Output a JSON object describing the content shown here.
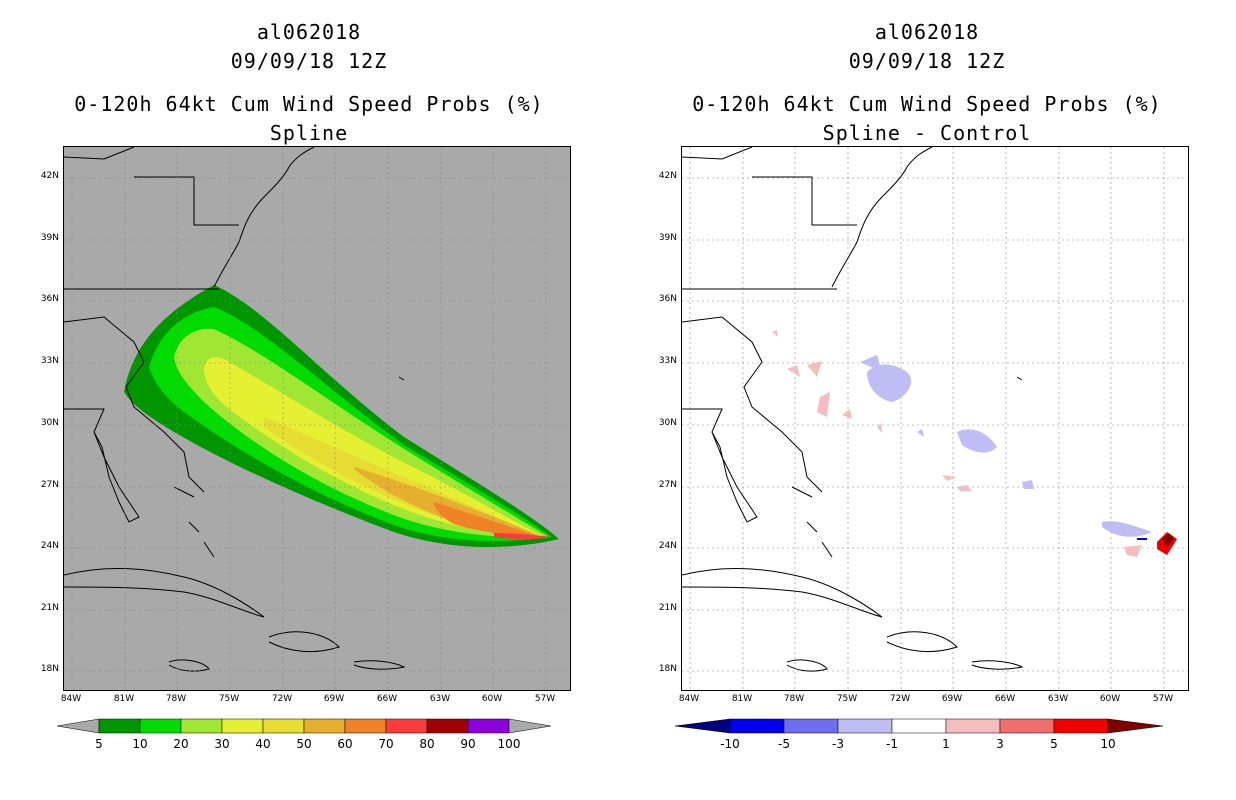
{
  "left": {
    "title_line1": "al062018",
    "title_line2": "09/09/18 12Z",
    "title_line3": "0-120h 64kt Cum Wind Speed Probs (%)",
    "subtitle": "Spline",
    "background": "#a9a9a9",
    "colorbar": {
      "colors": [
        "#009600",
        "#00dc00",
        "#a0e632",
        "#e6f032",
        "#e6dc32",
        "#e6af2d",
        "#f08228",
        "#fa3c3c",
        "#a00000",
        "#8c00dc"
      ],
      "end_colors": [
        "#a9a9a9",
        "#a9a9a9"
      ],
      "labels": [
        "5",
        "10",
        "20",
        "30",
        "40",
        "50",
        "60",
        "70",
        "80",
        "90",
        "100"
      ]
    }
  },
  "right": {
    "title_line1": "al062018",
    "title_line2": "09/09/18 12Z",
    "title_line3": "0-120h 64kt Cum Wind Speed Probs (%)",
    "subtitle": "Spline - Control",
    "background": "#ffffff",
    "colorbar": {
      "colors": [
        "#0000f0",
        "#6e6ef0",
        "#bebef5",
        "#ffffff",
        "#f5bebe",
        "#f06e6e",
        "#f00000"
      ],
      "end_colors": [
        "#000080",
        "#800000"
      ],
      "labels": [
        "-10",
        "-5",
        "-3",
        "-1",
        "1",
        "3",
        "5",
        "10"
      ]
    }
  },
  "map": {
    "lat_labels": [
      "42N",
      "39N",
      "36N",
      "33N",
      "30N",
      "27N",
      "24N",
      "21N",
      "18N"
    ],
    "lon_labels": [
      "84W",
      "81W",
      "78W",
      "75W",
      "72W",
      "69W",
      "66W",
      "63W",
      "60W",
      "57W"
    ]
  }
}
